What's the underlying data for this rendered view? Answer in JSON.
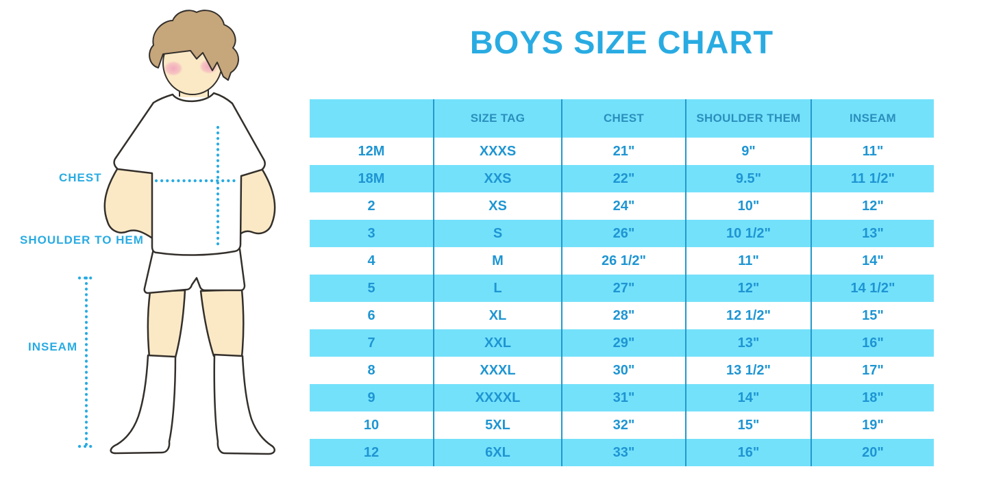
{
  "title": "BOYS SIZE CHART",
  "figure_labels": {
    "chest": "CHEST",
    "shoulder_to_hem": "SHOULDER TO HEM",
    "inseam": "INSEAM"
  },
  "colors": {
    "accent_blue": "#29ABE2",
    "stripe_blue": "#74E1FB",
    "divider_blue": "#2398CC",
    "header_text": "#2A8FBC",
    "cell_text": "#1E95D2",
    "skin": "#FBE9C6",
    "hair": "#C6A67B",
    "blush": "#F2A6BC",
    "outline": "#332F2B"
  },
  "chart_data": {
    "type": "table",
    "title": "BOYS SIZE CHART",
    "columns": [
      "",
      "SIZE TAG",
      "CHEST",
      "SHOULDER THEM",
      "INSEAM"
    ],
    "rows": [
      [
        "12M",
        "XXXS",
        "21\"",
        "9\"",
        "11\""
      ],
      [
        "18M",
        "XXS",
        "22\"",
        "9.5\"",
        "11 1/2\""
      ],
      [
        "2",
        "XS",
        "24\"",
        "10\"",
        "12\""
      ],
      [
        "3",
        "S",
        "26\"",
        "10 1/2\"",
        "13\""
      ],
      [
        "4",
        "M",
        "26 1/2\"",
        "11\"",
        "14\""
      ],
      [
        "5",
        "L",
        "27\"",
        "12\"",
        "14 1/2\""
      ],
      [
        "6",
        "XL",
        "28\"",
        "12 1/2\"",
        "15\""
      ],
      [
        "7",
        "XXL",
        "29\"",
        "13\"",
        "16\""
      ],
      [
        "8",
        "XXXL",
        "30\"",
        "13 1/2\"",
        "17\""
      ],
      [
        "9",
        "XXXXL",
        "31\"",
        "14\"",
        "18\""
      ],
      [
        "10",
        "5XL",
        "32\"",
        "15\"",
        "19\""
      ],
      [
        "12",
        "6XL",
        "33\"",
        "16\"",
        "20\""
      ]
    ],
    "layout": {
      "legend": "none",
      "grid": "vertical column dividers only",
      "stripe_pattern": "data rows alternate white / light-blue starting with white",
      "header_background": "light-blue"
    }
  }
}
